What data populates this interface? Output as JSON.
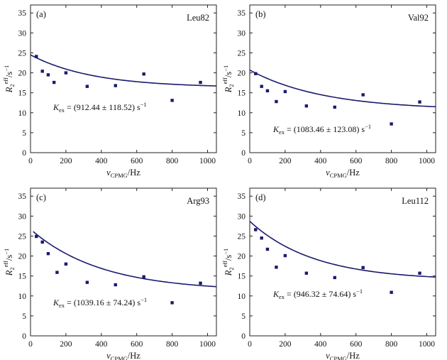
{
  "figure": {
    "xlabel_symbol": "ν",
    "xlabel_sub": "CPMG",
    "xlabel_unit": "/Hz",
    "ylabel_symbol": "R",
    "ylabel_sub": "2",
    "ylabel_sup": "eff",
    "ylabel_unit": "/s",
    "ylabel_unit_sup": "−1",
    "kex_symbol": "K",
    "kex_sub": "ex",
    "kex_eq": " = ",
    "kex_unit": " s",
    "kex_unit_sup": "−1",
    "line_color": "#1a1a6e",
    "marker_color": "#1a1a6e"
  },
  "chart_data": [
    {
      "type": "scatter",
      "panel": "(a)",
      "title": "Leu82",
      "kex_text": "(912.44 ± 118.52)",
      "xlim": [
        0,
        1050
      ],
      "ylim": [
        0,
        37
      ],
      "xticks": [
        0,
        200,
        400,
        600,
        800,
        1000
      ],
      "yticks": [
        0,
        5,
        10,
        15,
        20,
        25,
        30,
        35
      ],
      "points": {
        "x": [
          33,
          67,
          100,
          133,
          200,
          320,
          480,
          640,
          800,
          960
        ],
        "y": [
          24.1,
          20.4,
          19.5,
          17.6,
          20.0,
          16.6,
          16.8,
          19.7,
          13.1,
          17.6
        ]
      },
      "fit": {
        "r0": 16.3,
        "amp": 8.2,
        "kex": 912.44,
        "x_start": 0,
        "x_end": 1050
      }
    },
    {
      "type": "scatter",
      "panel": "(b)",
      "title": "Val92",
      "kex_text": "(1083.46 ± 123.08)",
      "xlim": [
        0,
        1050
      ],
      "ylim": [
        0,
        37
      ],
      "xticks": [
        0,
        200,
        400,
        600,
        800,
        1000
      ],
      "yticks": [
        0,
        5,
        10,
        15,
        20,
        25,
        30,
        35
      ],
      "points": {
        "x": [
          33,
          67,
          100,
          150,
          200,
          320,
          480,
          640,
          800,
          960
        ],
        "y": [
          19.8,
          16.6,
          15.5,
          12.8,
          15.3,
          11.7,
          11.4,
          14.5,
          7.2,
          12.7
        ]
      },
      "fit": {
        "r0": 10.7,
        "amp": 10.0,
        "kex": 1083.46,
        "x_start": 0,
        "x_end": 1050
      }
    },
    {
      "type": "scatter",
      "panel": "(c)",
      "title": "Arg93",
      "kex_text": "(1039.16 ± 74.24)",
      "xlim": [
        0,
        1050
      ],
      "ylim": [
        0,
        37
      ],
      "xticks": [
        0,
        200,
        400,
        600,
        800,
        1000
      ],
      "yticks": [
        0,
        5,
        10,
        15,
        20,
        25,
        30,
        35
      ],
      "points": {
        "x": [
          33,
          67,
          100,
          150,
          200,
          320,
          480,
          640,
          800,
          960
        ],
        "y": [
          24.9,
          23.5,
          20.6,
          15.9,
          18.0,
          13.4,
          12.8,
          14.8,
          8.3,
          13.2
        ]
      },
      "fit": {
        "r0": 11.2,
        "amp": 15.5,
        "kex": 1039.16,
        "x_start": 15,
        "x_end": 1050
      }
    },
    {
      "type": "scatter",
      "panel": "(d)",
      "title": "Leu112",
      "kex_text": "(946.32 ± 74.64)",
      "xlim": [
        0,
        1050
      ],
      "ylim": [
        0,
        37
      ],
      "xticks": [
        0,
        200,
        400,
        600,
        800,
        1000
      ],
      "yticks": [
        0,
        5,
        10,
        15,
        20,
        25,
        30,
        35
      ],
      "points": {
        "x": [
          33,
          67,
          100,
          150,
          200,
          320,
          480,
          640,
          800,
          960
        ],
        "y": [
          26.6,
          24.5,
          21.7,
          17.2,
          20.1,
          15.7,
          14.6,
          17.1,
          10.9,
          15.7
        ]
      },
      "fit": {
        "r0": 13.9,
        "amp": 14.8,
        "kex": 946.32,
        "x_start": 0,
        "x_end": 1050
      }
    }
  ]
}
